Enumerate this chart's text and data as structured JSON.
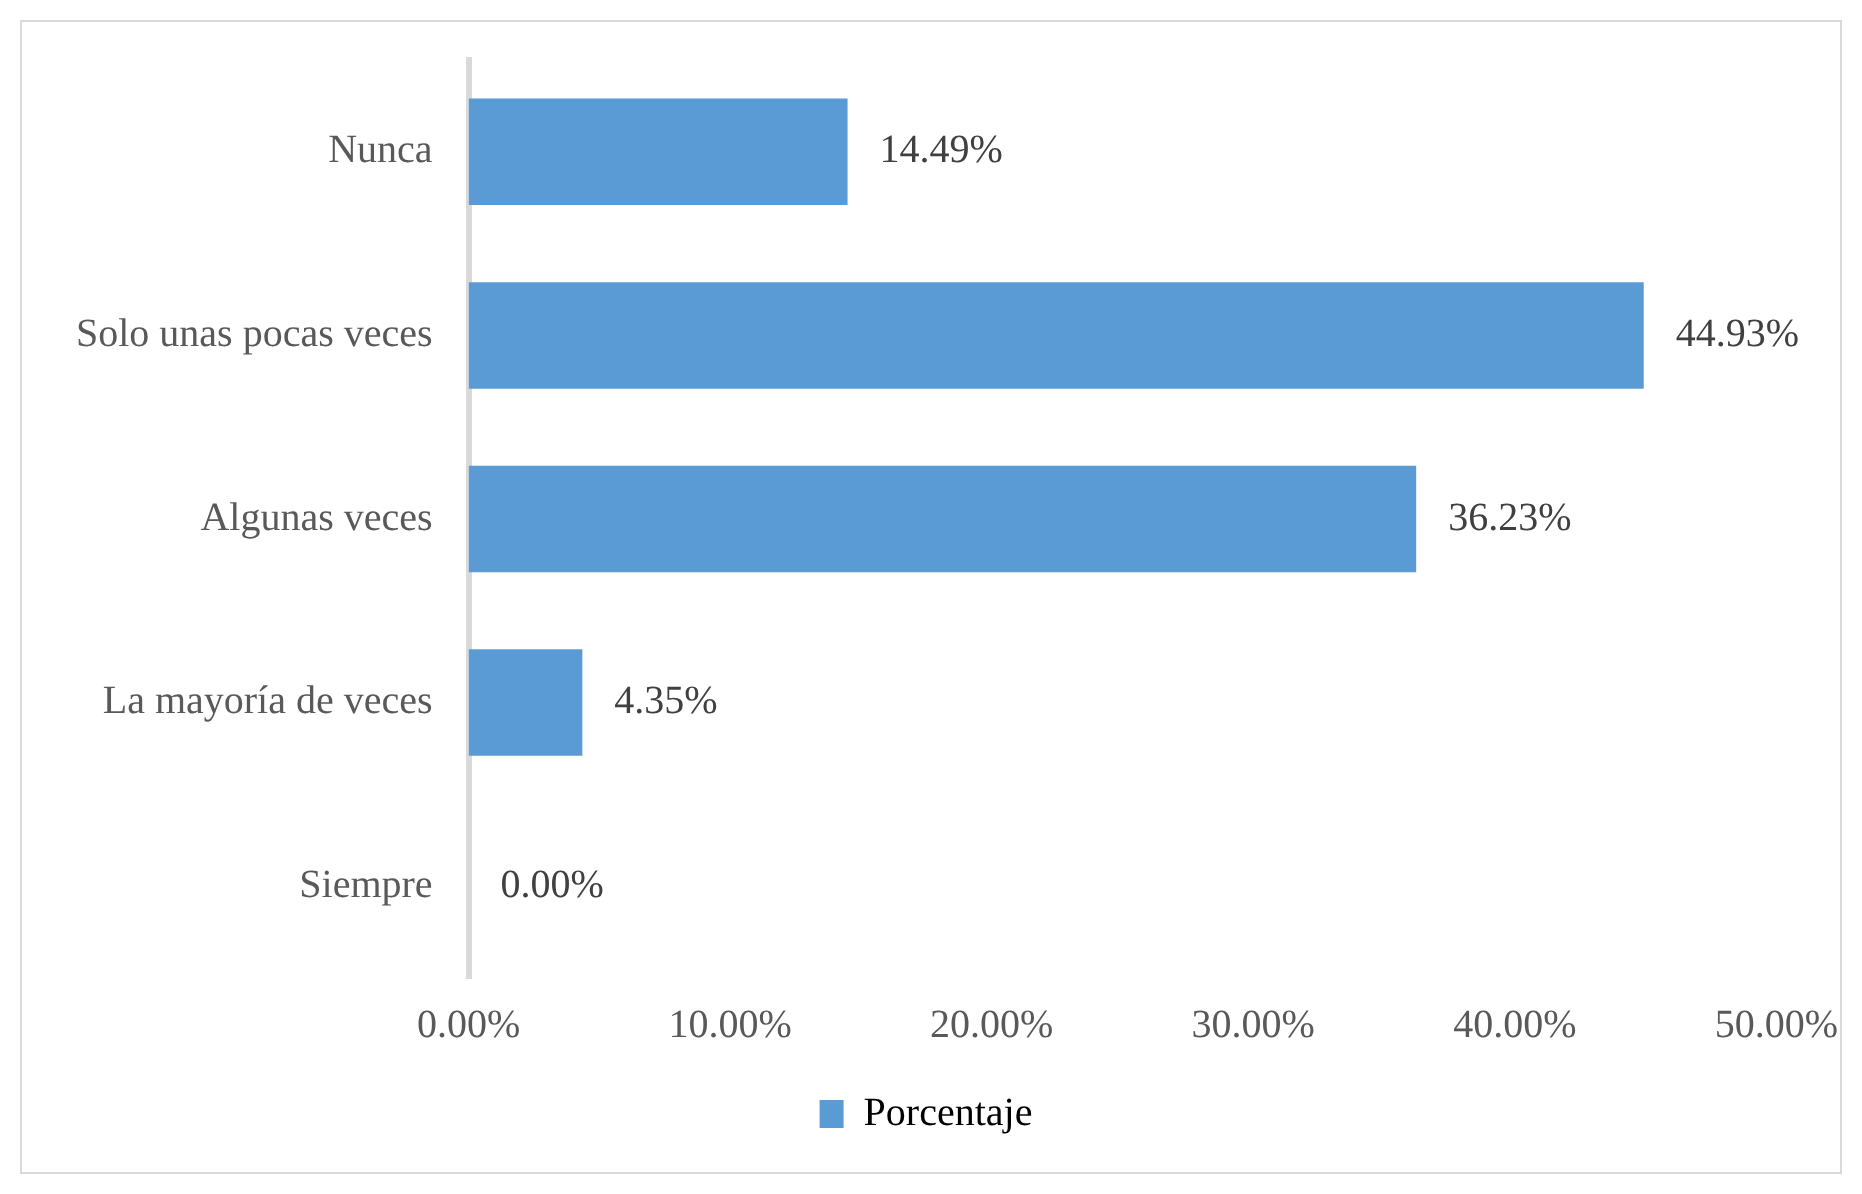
{
  "chart_data": {
    "type": "bar",
    "orientation": "horizontal",
    "categories": [
      "Nunca",
      "Solo unas pocas veces",
      "Algunas veces",
      "La mayoría de veces",
      "Siempre"
    ],
    "series": [
      {
        "name": "Porcentaje",
        "color": "#5b9bd5",
        "values": [
          14.49,
          44.93,
          36.23,
          4.35,
          0.0
        ],
        "value_labels": [
          "14.49%",
          "44.93%",
          "36.23%",
          "4.35%",
          "0.00%"
        ]
      }
    ],
    "xlim": [
      0,
      50
    ],
    "xticks": [
      {
        "value": 0,
        "label": "0.00%"
      },
      {
        "value": 10,
        "label": "10.00%"
      },
      {
        "value": 20,
        "label": "20.00%"
      },
      {
        "value": 30,
        "label": "30.00%"
      },
      {
        "value": 40,
        "label": "40.00%"
      },
      {
        "value": 50,
        "label": "50.00%"
      }
    ],
    "grid": false,
    "legend": "bottom"
  }
}
